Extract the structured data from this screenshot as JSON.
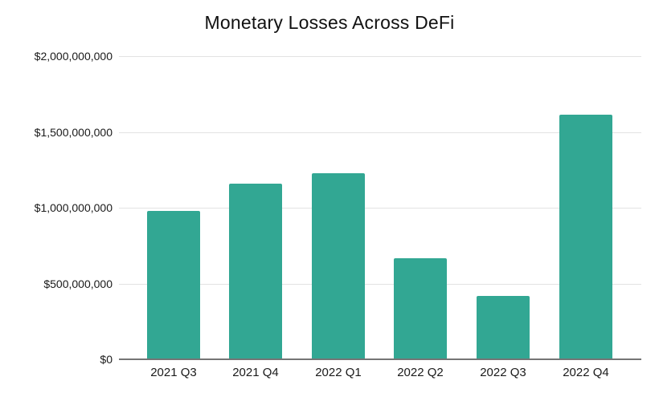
{
  "chart_data": {
    "type": "bar",
    "title": "Monetary Losses Across DeFi",
    "categories": [
      "2021 Q3",
      "2021 Q4",
      "2022 Q1",
      "2022 Q2",
      "2022 Q3",
      "2022 Q4"
    ],
    "values": [
      980000000,
      1160000000,
      1230000000,
      665000000,
      420000000,
      1615000000
    ],
    "xlabel": "",
    "ylabel": "",
    "ylim": [
      0,
      2000000000
    ],
    "yticks": [
      0,
      500000000,
      1000000000,
      1500000000,
      2000000000
    ],
    "ytick_labels": [
      "$0",
      "$500,000,000",
      "$1,000,000,000",
      "$1,500,000,000",
      "$2,000,000,000"
    ],
    "grid": "horizontal",
    "legend": "none",
    "colors": {
      "bar": "#32a793",
      "gridline": "#e3e3e3",
      "axis_line": "#757575",
      "title_text": "#111111",
      "tick_text": "#1a1a1a",
      "background": "#ffffff"
    }
  }
}
